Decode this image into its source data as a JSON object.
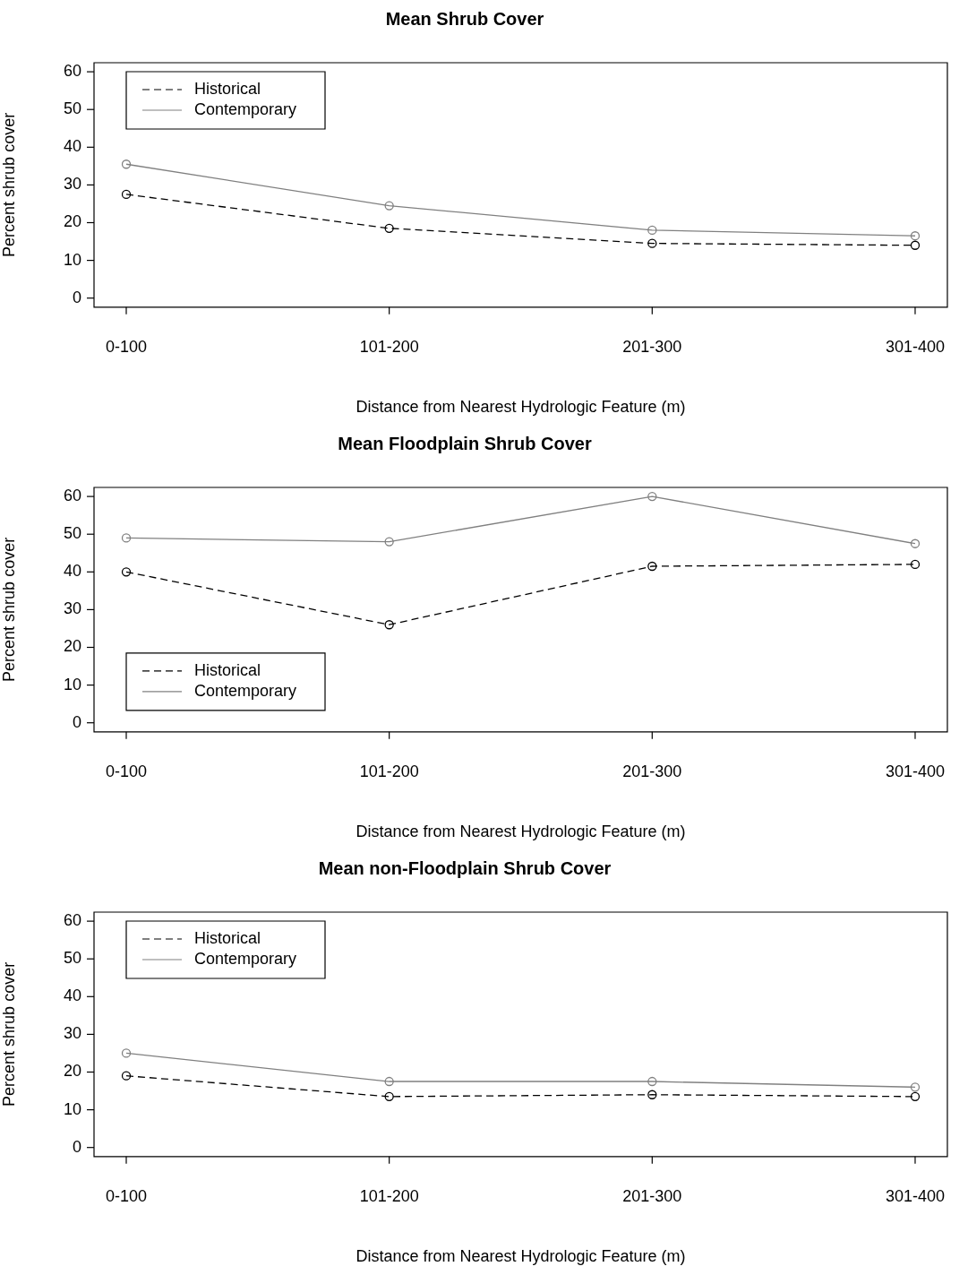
{
  "chart_data": [
    {
      "type": "line",
      "title": "Mean Shrub Cover",
      "xlabel": "Distance from Nearest Hydrologic Feature (m)",
      "ylabel": "Percent shrub cover",
      "categories": [
        "0-100",
        "101-200",
        "201-300",
        "301-400"
      ],
      "ylim": [
        -2.4,
        62.4
      ],
      "yticks": [
        0,
        10,
        20,
        30,
        40,
        50,
        60
      ],
      "marker": "circle",
      "legend": "top left",
      "series": [
        {
          "name": "Historical",
          "color": "#000000",
          "line_style": "dashed",
          "values": [
            27.5,
            18.5,
            14.5,
            14
          ]
        },
        {
          "name": "Contemporary",
          "color": "#808080",
          "line_style": "solid",
          "values": [
            35.5,
            24.5,
            18,
            16.5
          ]
        }
      ]
    },
    {
      "type": "line",
      "title": "Mean Floodplain Shrub Cover",
      "xlabel": "Distance from Nearest Hydrologic Feature (m)",
      "ylabel": "Percent shrub cover",
      "categories": [
        "0-100",
        "101-200",
        "201-300",
        "301-400"
      ],
      "ylim": [
        -2.4,
        62.4
      ],
      "yticks": [
        0,
        10,
        20,
        30,
        40,
        50,
        60
      ],
      "marker": "circle",
      "legend": "bottom left",
      "series": [
        {
          "name": "Historical",
          "color": "#000000",
          "line_style": "dashed",
          "values": [
            40,
            26,
            41.5,
            42
          ]
        },
        {
          "name": "Contemporary",
          "color": "#808080",
          "line_style": "solid",
          "values": [
            49,
            48,
            60,
            47.5
          ]
        }
      ]
    },
    {
      "type": "line",
      "title": "Mean non-Floodplain Shrub Cover",
      "xlabel": "Distance from Nearest Hydrologic Feature (m)",
      "ylabel": "Percent shrub cover",
      "categories": [
        "0-100",
        "101-200",
        "201-300",
        "301-400"
      ],
      "ylim": [
        -2.4,
        62.4
      ],
      "yticks": [
        0,
        10,
        20,
        30,
        40,
        50,
        60
      ],
      "marker": "circle",
      "legend": "top left",
      "series": [
        {
          "name": "Historical",
          "color": "#000000",
          "line_style": "dashed",
          "values": [
            19,
            13.5,
            14,
            13.5
          ]
        },
        {
          "name": "Contemporary",
          "color": "#808080",
          "line_style": "solid",
          "values": [
            25,
            17.5,
            17.5,
            16
          ]
        }
      ]
    }
  ]
}
